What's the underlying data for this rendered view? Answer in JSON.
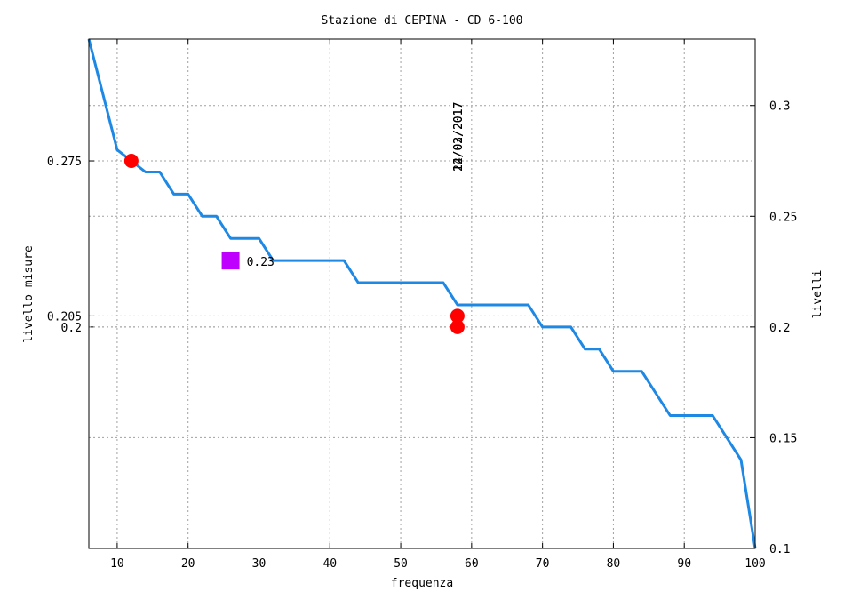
{
  "chart_data": {
    "type": "line",
    "title": "Stazione di CEPINA - CD 6-100",
    "xlabel": "frequenza",
    "ylabel_left": "livello misure",
    "ylabel_right": "livelli",
    "xlim": [
      6,
      100
    ],
    "ylim": [
      0.1,
      0.33
    ],
    "grid": true,
    "x_ticks": [
      10,
      20,
      30,
      40,
      50,
      60,
      70,
      80,
      90,
      100
    ],
    "y_ticks_left": [
      0.275,
      0.205,
      0.2
    ],
    "y_ticks_right": [
      0.3,
      0.25,
      0.2,
      0.15,
      0.1
    ],
    "line_color": "#1e88e5",
    "series": [
      {
        "points": [
          [
            6,
            0.33
          ],
          [
            10,
            0.28
          ],
          [
            14,
            0.27
          ],
          [
            16,
            0.27
          ],
          [
            18,
            0.26
          ],
          [
            20,
            0.26
          ],
          [
            22,
            0.25
          ],
          [
            24,
            0.25
          ],
          [
            26,
            0.24
          ],
          [
            30,
            0.24
          ],
          [
            32,
            0.23
          ],
          [
            42,
            0.23
          ],
          [
            44,
            0.22
          ],
          [
            56,
            0.22
          ],
          [
            58,
            0.21
          ],
          [
            68,
            0.21
          ],
          [
            70,
            0.2
          ],
          [
            74,
            0.2
          ],
          [
            76,
            0.19
          ],
          [
            78,
            0.19
          ],
          [
            80,
            0.18
          ],
          [
            84,
            0.18
          ],
          [
            88,
            0.16
          ],
          [
            94,
            0.16
          ],
          [
            98,
            0.14
          ],
          [
            100,
            0.1
          ]
        ]
      }
    ],
    "measured_points": [
      {
        "x": 12,
        "y": 0.275,
        "color": "#ff0000",
        "shape": "circle"
      },
      {
        "x": 58,
        "y": 0.205,
        "color": "#ff0000",
        "shape": "circle"
      },
      {
        "x": 58,
        "y": 0.2,
        "color": "#ff0000",
        "shape": "circle"
      }
    ],
    "marker_point": {
      "x": 26,
      "y": 0.23,
      "color": "#c000ff",
      "shape": "square",
      "label": "0.23"
    },
    "vertical_date_labels": {
      "x": 58,
      "labels": [
        "12/02/2017",
        "24/02/2017",
        "12/03/2017"
      ]
    }
  }
}
